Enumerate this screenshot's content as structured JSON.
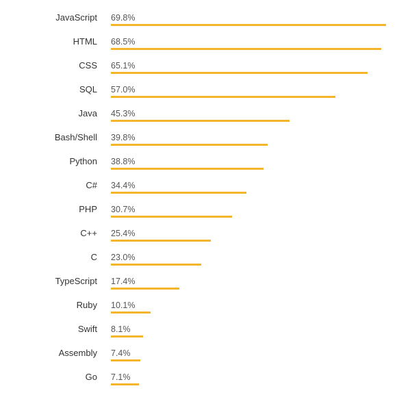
{
  "chart_data": {
    "type": "bar",
    "orientation": "horizontal",
    "categories": [
      "JavaScript",
      "HTML",
      "CSS",
      "SQL",
      "Java",
      "Bash/Shell",
      "Python",
      "C#",
      "PHP",
      "C++",
      "C",
      "TypeScript",
      "Ruby",
      "Swift",
      "Assembly",
      "Go"
    ],
    "values": [
      69.8,
      68.5,
      65.1,
      57.0,
      45.3,
      39.8,
      38.8,
      34.4,
      30.7,
      25.4,
      23.0,
      17.4,
      10.1,
      8.1,
      7.4,
      7.1
    ],
    "value_labels": [
      "69.8%",
      "68.5%",
      "65.1%",
      "57.0%",
      "45.3%",
      "39.8%",
      "38.8%",
      "34.4%",
      "30.7%",
      "25.4%",
      "23.0%",
      "17.4%",
      "10.1%",
      "8.1%",
      "7.4%",
      "7.1%"
    ],
    "title": "",
    "xlabel": "",
    "ylabel": "",
    "xlim": [
      0,
      69.8
    ],
    "grid": false,
    "bar_color": "#f4b52b"
  }
}
